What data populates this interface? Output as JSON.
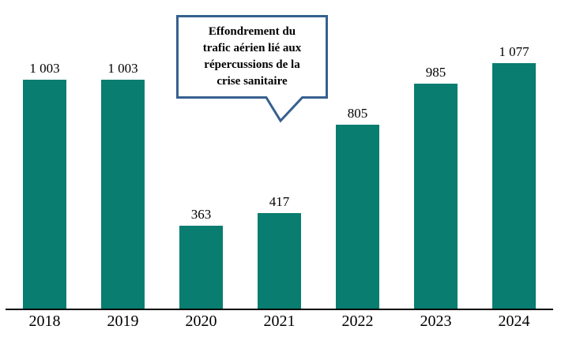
{
  "chart_data": {
    "type": "bar",
    "title": "",
    "xlabel": "",
    "ylabel": "",
    "categories": [
      "2018",
      "2019",
      "2020",
      "2021",
      "2022",
      "2023",
      "2024"
    ],
    "values": [
      1003,
      1003,
      363,
      417,
      805,
      985,
      1077
    ],
    "value_labels": [
      "1 003",
      "1 003",
      "363",
      "417",
      "805",
      "985",
      "1 077"
    ],
    "ylim": [
      0,
      1100
    ],
    "grid": false,
    "legend": null,
    "bar_color": "#087D70",
    "axis_color": "#000000",
    "annotation": {
      "text": "Effondrement du trafic aérien lié aux répercussions de la crise sanitaire",
      "lines": [
        "Effondrement du",
        "trafic aérien lié aux",
        "répercussions de la",
        "crise sanitaire"
      ],
      "border_color": "#37608F",
      "points_to": "2020-2021"
    }
  }
}
